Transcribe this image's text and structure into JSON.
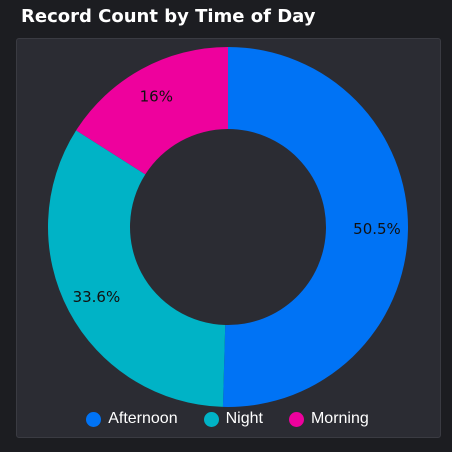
{
  "title": "Record Count by Time of Day",
  "chart_data": {
    "type": "pie",
    "donut": true,
    "title": "Record Count by Time of Day",
    "legend_position": "bottom",
    "slices": [
      {
        "label": "Afternoon",
        "value": 50.5,
        "display": "50.5%",
        "color": "#0073f5"
      },
      {
        "label": "Night",
        "value": 33.6,
        "display": "33.6%",
        "color": "#00b3c6"
      },
      {
        "label": "Morning",
        "value": 16.0,
        "display": "16%",
        "color": "#ee019d"
      }
    ]
  }
}
